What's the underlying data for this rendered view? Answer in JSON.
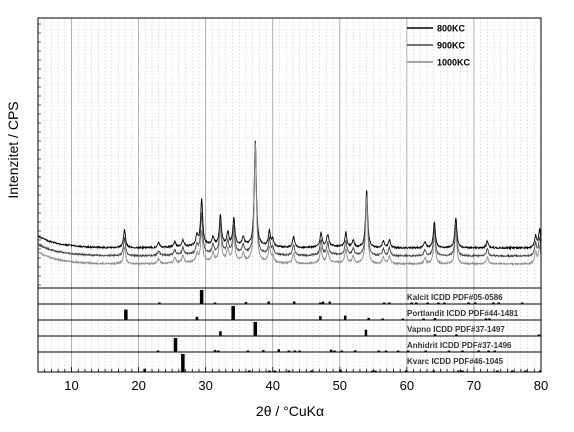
{
  "chart_data": {
    "type": "line",
    "title": "",
    "xlabel": "2θ / °CuKα",
    "ylabel": "Intenzitet / CPS",
    "xlim": [
      5,
      80
    ],
    "xticks": [
      10,
      20,
      30,
      40,
      50,
      60,
      70,
      80
    ],
    "grid": true,
    "legend_placement": "top-right",
    "series": [
      {
        "name": "800KC",
        "color": "#000000",
        "offset": 0,
        "peaks": [
          [
            17.9,
            18
          ],
          [
            23.0,
            5
          ],
          [
            25.4,
            5
          ],
          [
            26.6,
            7
          ],
          [
            28.7,
            10
          ],
          [
            29.4,
            47
          ],
          [
            31.1,
            8
          ],
          [
            32.2,
            30
          ],
          [
            33.3,
            12
          ],
          [
            34.2,
            26
          ],
          [
            35.6,
            8
          ],
          [
            37.4,
            105
          ],
          [
            39.5,
            15
          ],
          [
            40.0,
            7
          ],
          [
            43.1,
            11
          ],
          [
            47.2,
            14
          ],
          [
            48.2,
            12
          ],
          [
            50.9,
            14
          ],
          [
            52.0,
            7
          ],
          [
            54.0,
            58
          ],
          [
            56.5,
            7
          ],
          [
            57.4,
            8
          ],
          [
            62.7,
            6
          ],
          [
            64.1,
            26
          ],
          [
            67.3,
            30
          ],
          [
            72.0,
            7
          ],
          [
            79.2,
            12
          ],
          [
            79.8,
            18
          ]
        ]
      },
      {
        "name": "900KC",
        "color": "#444444",
        "offset": 8,
        "peaks": [
          [
            17.9,
            18
          ],
          [
            23.0,
            5
          ],
          [
            25.4,
            5
          ],
          [
            26.6,
            7
          ],
          [
            28.7,
            9
          ],
          [
            29.4,
            40
          ],
          [
            31.1,
            8
          ],
          [
            32.2,
            31
          ],
          [
            33.3,
            12
          ],
          [
            34.2,
            27
          ],
          [
            35.6,
            8
          ],
          [
            37.4,
            112
          ],
          [
            39.5,
            15
          ],
          [
            40.0,
            7
          ],
          [
            43.1,
            11
          ],
          [
            47.2,
            15
          ],
          [
            48.2,
            12
          ],
          [
            50.9,
            14
          ],
          [
            52.0,
            7
          ],
          [
            54.0,
            62
          ],
          [
            56.5,
            7
          ],
          [
            57.4,
            8
          ],
          [
            62.7,
            6
          ],
          [
            64.1,
            27
          ],
          [
            67.3,
            31
          ],
          [
            72.0,
            7
          ],
          [
            79.2,
            12
          ],
          [
            79.8,
            18
          ]
        ]
      },
      {
        "name": "1000KC",
        "color": "#8c8c8c",
        "offset": 16,
        "peaks": [
          [
            17.9,
            17
          ],
          [
            23.0,
            5
          ],
          [
            25.4,
            5
          ],
          [
            26.6,
            7
          ],
          [
            28.7,
            8
          ],
          [
            29.4,
            30
          ],
          [
            31.1,
            8
          ],
          [
            32.2,
            32
          ],
          [
            33.3,
            12
          ],
          [
            34.2,
            28
          ],
          [
            35.6,
            8
          ],
          [
            37.4,
            118
          ],
          [
            39.5,
            15
          ],
          [
            40.0,
            7
          ],
          [
            43.1,
            11
          ],
          [
            47.2,
            15
          ],
          [
            48.2,
            12
          ],
          [
            50.9,
            14
          ],
          [
            52.0,
            7
          ],
          [
            54.0,
            66
          ],
          [
            56.5,
            7
          ],
          [
            57.4,
            8
          ],
          [
            62.7,
            6
          ],
          [
            64.1,
            28
          ],
          [
            67.3,
            32
          ],
          [
            72.0,
            7
          ],
          [
            79.2,
            12
          ],
          [
            79.8,
            18
          ]
        ]
      }
    ],
    "reference_patterns": [
      {
        "name": "Kalcit ICDD PDF#05-0586",
        "lines": [
          [
            23.1,
            10
          ],
          [
            29.4,
            100
          ],
          [
            31.4,
            3
          ],
          [
            36.0,
            14
          ],
          [
            39.4,
            18
          ],
          [
            43.2,
            18
          ],
          [
            47.1,
            8
          ],
          [
            47.5,
            17
          ],
          [
            48.5,
            17
          ],
          [
            56.6,
            4
          ],
          [
            57.4,
            8
          ],
          [
            60.7,
            5
          ],
          [
            61.4,
            3
          ],
          [
            63.1,
            3
          ],
          [
            64.7,
            5
          ],
          [
            65.6,
            3
          ],
          [
            69.2,
            3
          ],
          [
            70.2,
            3
          ],
          [
            72.9,
            3
          ],
          [
            73.7,
            3
          ],
          [
            77.2,
            3
          ]
        ]
      },
      {
        "name": "Portlandit ICDD PDF#44-1481",
        "lines": [
          [
            18.1,
            74
          ],
          [
            28.7,
            23
          ],
          [
            34.1,
            100
          ],
          [
            47.1,
            28
          ],
          [
            50.8,
            31
          ],
          [
            54.3,
            15
          ],
          [
            56.4,
            3
          ],
          [
            59.4,
            6
          ],
          [
            62.5,
            9
          ],
          [
            64.2,
            13
          ],
          [
            71.8,
            9
          ],
          [
            72.3,
            4
          ]
        ]
      },
      {
        "name": "Vapno ICDD PDF#37-1497",
        "lines": [
          [
            32.2,
            34
          ],
          [
            37.4,
            100
          ],
          [
            53.9,
            45
          ],
          [
            64.2,
            13
          ],
          [
            67.4,
            12
          ],
          [
            79.7,
            4
          ]
        ]
      },
      {
        "name": "Anhidrit ICDD PDF#37-1496",
        "lines": [
          [
            22.9,
            7
          ],
          [
            25.5,
            100
          ],
          [
            31.4,
            14
          ],
          [
            31.9,
            9
          ],
          [
            36.3,
            6
          ],
          [
            38.6,
            13
          ],
          [
            40.9,
            20
          ],
          [
            42.4,
            9
          ],
          [
            43.3,
            6
          ],
          [
            44.0,
            5
          ],
          [
            48.7,
            17
          ],
          [
            49.2,
            4
          ],
          [
            50.3,
            5
          ],
          [
            52.3,
            12
          ],
          [
            55.8,
            10
          ],
          [
            56.9,
            3
          ],
          [
            58.7,
            3
          ],
          [
            60.2,
            3
          ],
          [
            62.8,
            3
          ],
          [
            66.3,
            3
          ],
          [
            68.3,
            3
          ],
          [
            70.7,
            3
          ],
          [
            72.2,
            3
          ],
          [
            73.1,
            3
          ]
        ]
      },
      {
        "name": "Kvarc ICDD PDF#46-1045",
        "lines": [
          [
            20.9,
            18
          ],
          [
            26.6,
            100
          ],
          [
            36.5,
            8
          ],
          [
            39.5,
            8
          ],
          [
            40.3,
            4
          ],
          [
            42.4,
            6
          ],
          [
            45.8,
            4
          ],
          [
            50.1,
            13
          ],
          [
            54.9,
            4
          ],
          [
            55.3,
            2
          ],
          [
            59.9,
            9
          ],
          [
            64.0,
            2
          ],
          [
            67.7,
            6
          ],
          [
            68.1,
            7
          ],
          [
            68.3,
            5
          ],
          [
            73.5,
            2
          ],
          [
            75.7,
            3
          ],
          [
            77.7,
            2
          ],
          [
            79.9,
            2
          ]
        ]
      }
    ]
  }
}
